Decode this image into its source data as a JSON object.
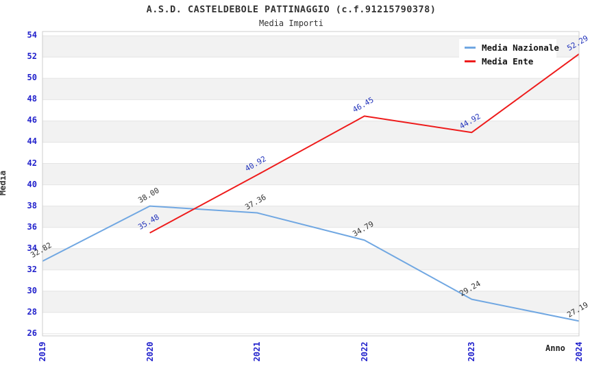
{
  "window": {
    "title": "A.S.D. CASTELDEBOLE PATTINAGGIO (c.f.91215790378)",
    "subtitle": "Media Importi"
  },
  "chart_data": {
    "type": "line",
    "title": "A.S.D. CASTELDEBOLE PATTINAGGIO (c.f.91215790378)",
    "subtitle": "Media Importi",
    "xlabel": "Anno",
    "ylabel": "Media",
    "x": [
      "2019",
      "2020",
      "2021",
      "2022",
      "2023",
      "2024"
    ],
    "series": [
      {
        "name": "Media Nazionale",
        "color": "#70A7E2",
        "label_color": "#333333",
        "values": [
          32.82,
          38.0,
          37.36,
          34.79,
          29.24,
          27.19
        ]
      },
      {
        "name": "Media Ente",
        "color": "#EE1B1B",
        "label_color": "#2233BB",
        "values": [
          null,
          35.48,
          40.92,
          46.45,
          44.92,
          52.29
        ]
      }
    ],
    "ylim": [
      26,
      54
    ],
    "ytick_step": 2,
    "grid": "horizontal-alternating-bands",
    "band_color": "#F2F2F2",
    "gridline_color": "#E4E4E4",
    "plot_border_color": "#CCCCCC",
    "axis_tick_color": "#2222CC",
    "legend_position": "top-right",
    "value_label_decimals": 2
  }
}
